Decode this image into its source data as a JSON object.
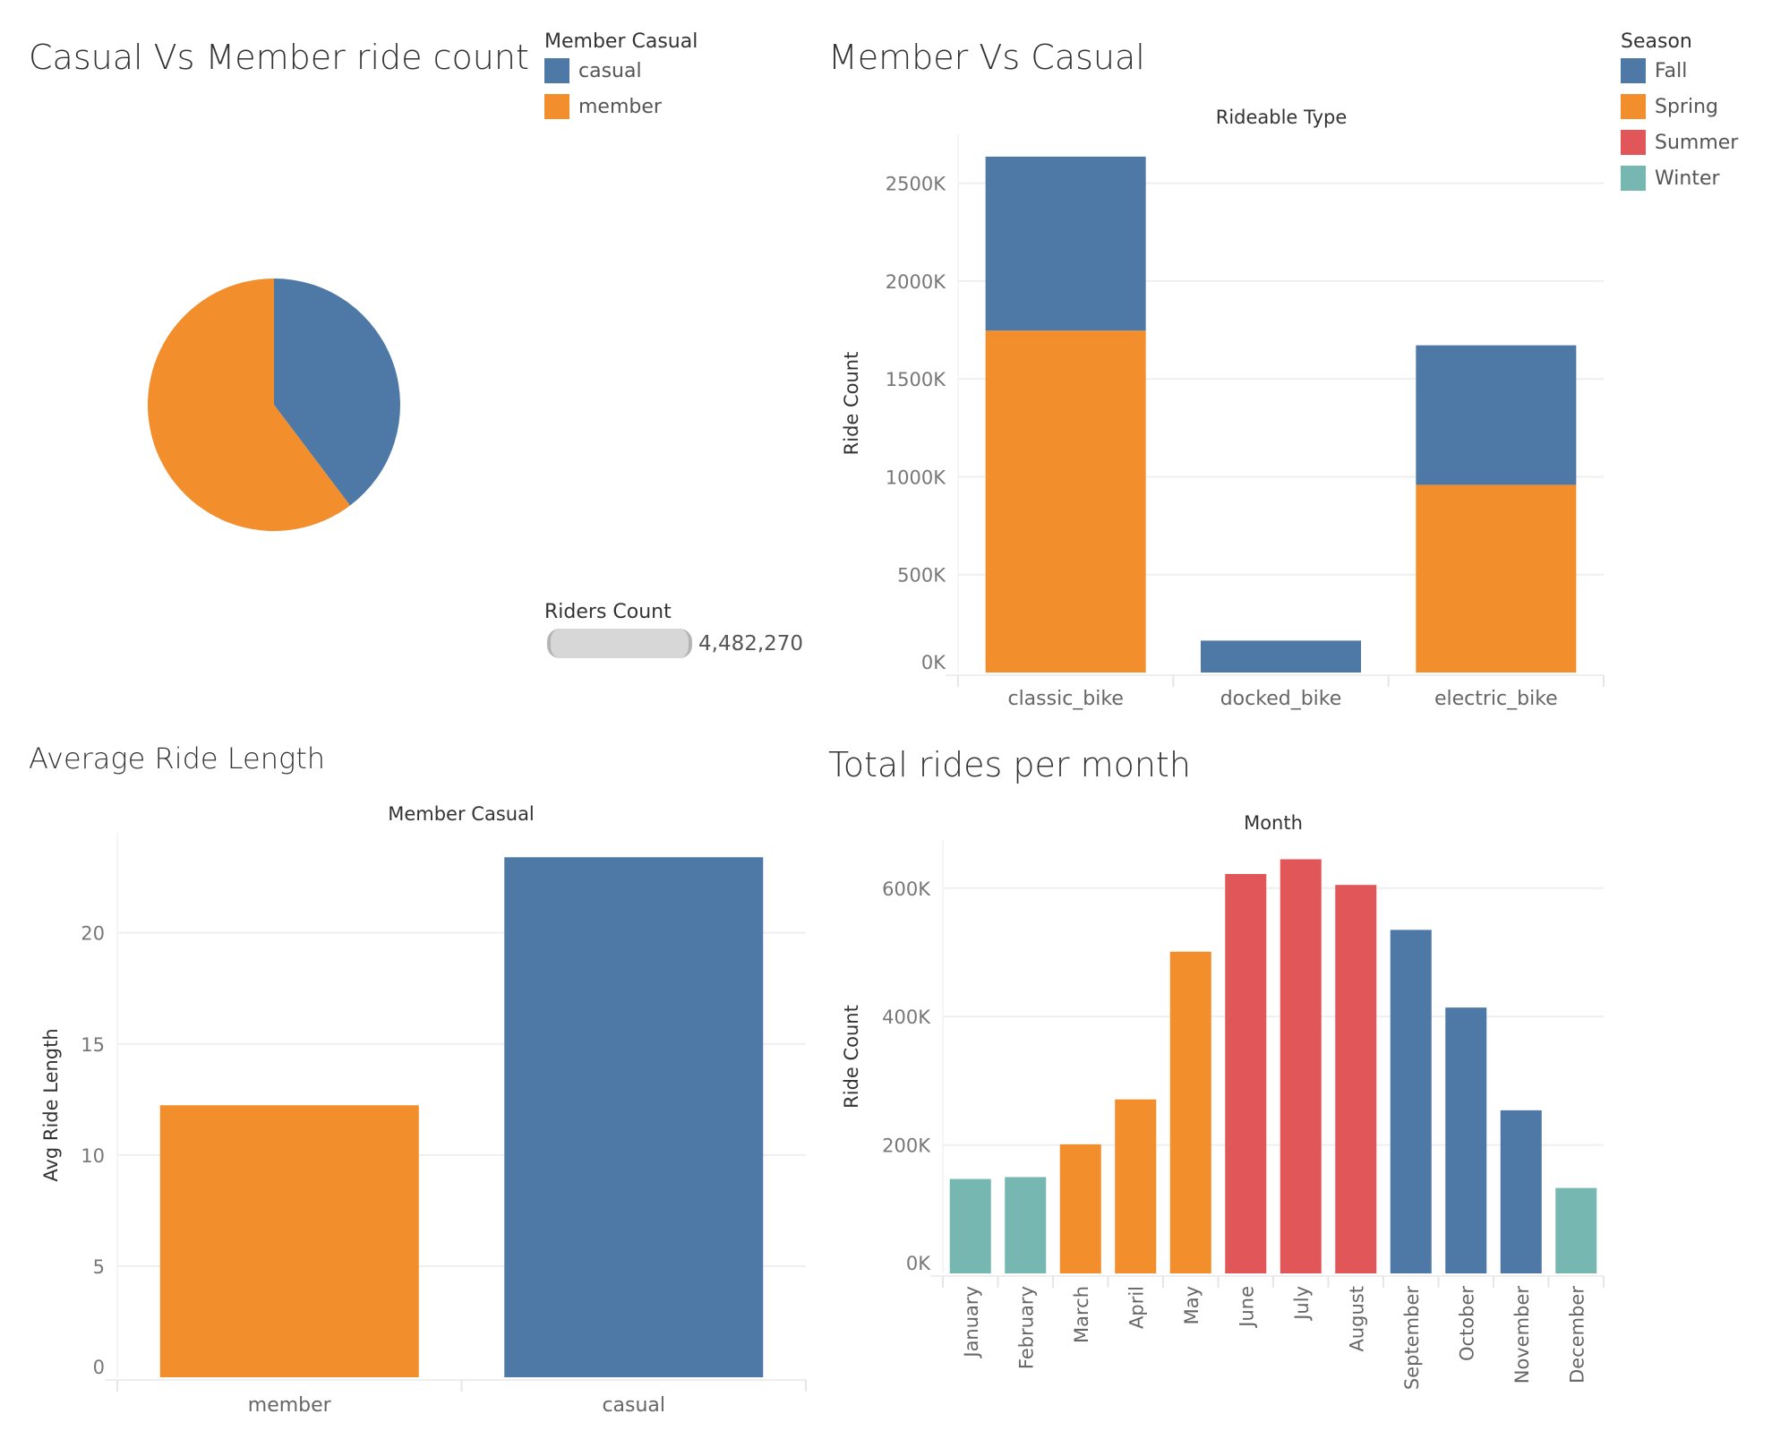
{
  "colors": {
    "casual": "#4e79a7",
    "member": "#f28e2b",
    "Fall": "#4e79a7",
    "Spring": "#f28e2b",
    "Summer": "#e15759",
    "Winter": "#76b7b2"
  },
  "panel1": {
    "title": "Casual Vs Member ride count",
    "legend_title": "Member Casual",
    "legend": [
      {
        "label": "casual",
        "color": "#4e79a7"
      },
      {
        "label": "member",
        "color": "#f28e2b"
      }
    ],
    "riders_count_label": "Riders Count",
    "riders_count_value": "4,482,270"
  },
  "panel2": {
    "title": "Member Vs Casual",
    "legend_title": "Season",
    "legend": [
      {
        "label": "Fall",
        "color": "#4e79a7"
      },
      {
        "label": "Spring",
        "color": "#f28e2b"
      },
      {
        "label": "Summer",
        "color": "#e15759"
      },
      {
        "label": "Winter",
        "color": "#76b7b2"
      }
    ]
  },
  "panel3": {
    "title": "Average Ride Length"
  },
  "panel4": {
    "title": "Total rides per month"
  },
  "chart_data": [
    {
      "type": "pie",
      "title": "Casual Vs Member ride count",
      "legend_title": "Member Casual",
      "slices": [
        {
          "label": "casual",
          "share_pct": 39.7,
          "color": "#4e79a7"
        },
        {
          "label": "member",
          "share_pct": 60.3,
          "color": "#f28e2b"
        }
      ]
    },
    {
      "type": "bar",
      "stacked": true,
      "title": "Member Vs Casual",
      "column_header": "Rideable Type",
      "ylabel": "Ride Count",
      "categories": [
        "classic_bike",
        "docked_bike",
        "electric_bike"
      ],
      "series": [
        {
          "color": "#f28e2b",
          "values": [
            1747000,
            0,
            959000
          ]
        },
        {
          "color": "#4e79a7",
          "values": [
            889000,
            163000,
            713000
          ]
        }
      ],
      "yticks": [
        "0K",
        "500K",
        "1000K",
        "1500K",
        "2000K",
        "2500K"
      ],
      "ytick_values": [
        0,
        500000,
        1000000,
        1500000,
        2000000,
        2500000
      ],
      "ylim": [
        0,
        2750000
      ],
      "grid": true,
      "legend_placement": "top-right"
    },
    {
      "type": "bar",
      "title": "Average Ride Length",
      "column_header": "Member Casual",
      "ylabel": "Avg Ride Length",
      "categories": [
        "member",
        "casual"
      ],
      "values": [
        12.24,
        23.4
      ],
      "colors": [
        "#f28e2b",
        "#4e79a7"
      ],
      "yticks": [
        "0",
        "5",
        "10",
        "15",
        "20"
      ],
      "ytick_values": [
        0,
        5,
        10,
        15,
        20
      ],
      "ylim": [
        0,
        24.5
      ],
      "grid": true
    },
    {
      "type": "bar",
      "title": "Total rides per month",
      "column_header": "Month",
      "ylabel": "Ride Count",
      "categories": [
        "January",
        "February",
        "March",
        "April",
        "May",
        "June",
        "July",
        "August",
        "September",
        "October",
        "November",
        "December"
      ],
      "values": [
        147000,
        150000,
        201000,
        271000,
        501000,
        622000,
        645000,
        605000,
        535000,
        414000,
        254000,
        133000
      ],
      "seasons": [
        "Winter",
        "Winter",
        "Spring",
        "Spring",
        "Spring",
        "Summer",
        "Summer",
        "Summer",
        "Fall",
        "Fall",
        "Fall",
        "Winter"
      ],
      "yticks": [
        "0K",
        "200K",
        "400K",
        "600K"
      ],
      "ytick_values": [
        0,
        200000,
        400000,
        600000
      ],
      "ylim": [
        0,
        675000
      ],
      "grid": true
    }
  ]
}
